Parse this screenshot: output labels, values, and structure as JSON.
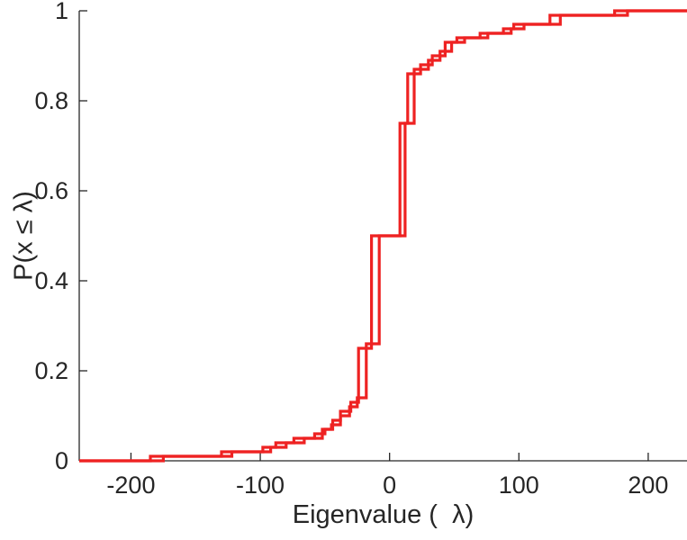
{
  "page": {
    "background": "#ffffff"
  },
  "chart_data": {
    "type": "line",
    "chart_style": "ecdf-stairstep",
    "title": "",
    "xlabel": "Eigenvalue (  λ)",
    "ylabel": "P(x ≤ λ)",
    "xlim": [
      -240,
      230
    ],
    "ylim": [
      0,
      1
    ],
    "xticks": [
      -200,
      -100,
      0,
      100,
      200
    ],
    "xtick_labels": [
      "-200",
      "-100",
      "0",
      "100",
      "200"
    ],
    "yticks": [
      0,
      0.2,
      0.4,
      0.6,
      0.8,
      1
    ],
    "ytick_labels": [
      "0",
      "0.2",
      "0.4",
      "0.6",
      "0.8",
      "1"
    ],
    "grid": false,
    "legend": "none",
    "axis_color": "#262626",
    "tick_length": 9,
    "line_color": "#ee2222",
    "line_width": 3.2,
    "series": [
      {
        "name": "ecdf-curve-1",
        "steps": [
          [
            -185,
            0.01
          ],
          [
            -130,
            0.02
          ],
          [
            -98,
            0.03
          ],
          [
            -88,
            0.04
          ],
          [
            -74,
            0.05
          ],
          [
            -58,
            0.06
          ],
          [
            -50,
            0.07
          ],
          [
            -44,
            0.09
          ],
          [
            -38,
            0.11
          ],
          [
            -30,
            0.13
          ],
          [
            -24,
            0.25
          ],
          [
            -14,
            0.5
          ],
          [
            8,
            0.75
          ],
          [
            14,
            0.86
          ],
          [
            24,
            0.88
          ],
          [
            33,
            0.9
          ],
          [
            43,
            0.93
          ],
          [
            52,
            0.94
          ],
          [
            70,
            0.95
          ],
          [
            88,
            0.96
          ],
          [
            96,
            0.97
          ],
          [
            124,
            0.99
          ],
          [
            174,
            1.0
          ]
        ]
      },
      {
        "name": "ecdf-curve-2",
        "steps": [
          [
            -175,
            0.01
          ],
          [
            -122,
            0.02
          ],
          [
            -92,
            0.03
          ],
          [
            -80,
            0.04
          ],
          [
            -66,
            0.05
          ],
          [
            -52,
            0.07
          ],
          [
            -45,
            0.08
          ],
          [
            -38,
            0.1
          ],
          [
            -31,
            0.12
          ],
          [
            -25,
            0.14
          ],
          [
            -18,
            0.26
          ],
          [
            -8,
            0.5
          ],
          [
            12,
            0.75
          ],
          [
            19,
            0.87
          ],
          [
            30,
            0.89
          ],
          [
            39,
            0.91
          ],
          [
            48,
            0.93
          ],
          [
            58,
            0.94
          ],
          [
            76,
            0.95
          ],
          [
            94,
            0.96
          ],
          [
            104,
            0.97
          ],
          [
            132,
            0.99
          ],
          [
            184,
            1.0
          ]
        ]
      }
    ]
  }
}
